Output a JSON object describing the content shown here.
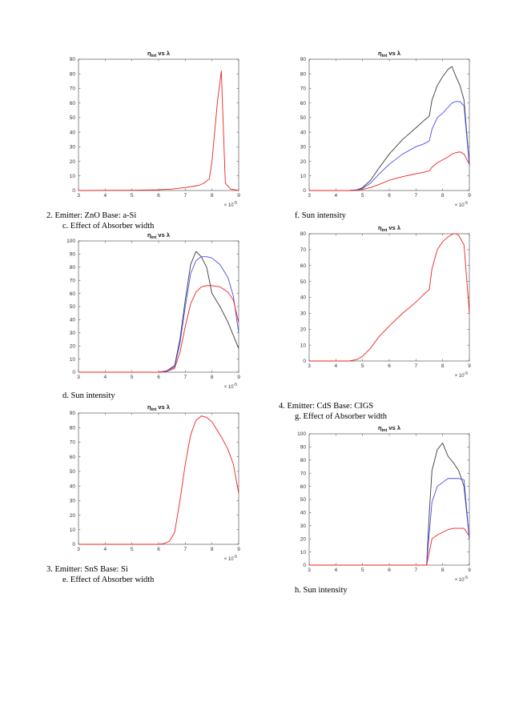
{
  "captions": {
    "cap2": "2.   Emitter:  ZnO Base: a-Si",
    "capc": "c.    Effect of Absorber width",
    "capd": "d.    Sun intensity",
    "cap3": "3.   Emitter:  SnS Base: Si",
    "cape": "e.    Effect of Absorber width",
    "capf": "f.    Sun intensity",
    "cap4": "4.   Emitter:  CdS   Base: CIGS",
    "capg": "g.    Effect of Absorber width",
    "caph": "h.    Sun intensity"
  },
  "colors": {
    "black": "#3a3a3a",
    "blue": "#4a4af0",
    "red": "#ee2222",
    "axis": "#444444"
  },
  "chart_data": [
    {
      "id": "plot1",
      "type": "line",
      "title": "ηint vs λ",
      "title_main": "η",
      "title_sub": "int",
      "title_rest": " vs λ",
      "xlabel": "",
      "ylabel": "",
      "x_multiplier": "× 10-5",
      "xlim": [
        3,
        9
      ],
      "ylim": [
        0,
        90
      ],
      "xticks": [
        3,
        4,
        5,
        6,
        7,
        8,
        9
      ],
      "yticks": [
        0,
        10,
        20,
        30,
        40,
        50,
        60,
        70,
        80,
        90
      ],
      "series": [
        {
          "color": "red",
          "x": [
            3,
            5,
            6,
            6.5,
            7,
            7.5,
            7.7,
            7.9,
            8.0,
            8.1,
            8.2,
            8.35,
            8.5,
            8.7,
            9.0
          ],
          "y": [
            0,
            0.2,
            0.5,
            1,
            2,
            3.5,
            5,
            8,
            20,
            40,
            60,
            82,
            5,
            1,
            0
          ]
        }
      ]
    },
    {
      "id": "plot2",
      "type": "line",
      "title": "ηint vs λ",
      "title_main": "η",
      "title_sub": "int",
      "title_rest": " vs λ",
      "xlabel": "",
      "ylabel": "",
      "x_multiplier": "× 10-5",
      "xlim": [
        3,
        9
      ],
      "ylim": [
        0,
        100
      ],
      "xticks": [
        3,
        4,
        5,
        6,
        7,
        8,
        9
      ],
      "yticks": [
        0,
        10,
        20,
        30,
        40,
        50,
        60,
        70,
        80,
        90,
        100
      ],
      "series": [
        {
          "color": "black",
          "x": [
            3,
            6.0,
            6.3,
            6.6,
            6.8,
            7.0,
            7.2,
            7.4,
            7.6,
            7.8,
            8.0,
            8.3,
            8.6,
            8.8,
            9.0
          ],
          "y": [
            0,
            0,
            1,
            5,
            25,
            55,
            82,
            92,
            88,
            80,
            60,
            50,
            38,
            28,
            18
          ]
        },
        {
          "color": "blue",
          "x": [
            3,
            6.0,
            6.3,
            6.6,
            6.8,
            7.0,
            7.2,
            7.4,
            7.6,
            7.8,
            8.0,
            8.3,
            8.6,
            8.8,
            9.0
          ],
          "y": [
            0,
            0,
            1,
            4,
            22,
            50,
            75,
            85,
            88,
            88,
            87,
            82,
            72,
            58,
            30
          ]
        },
        {
          "color": "red",
          "x": [
            3,
            6.0,
            6.3,
            6.6,
            6.8,
            7.0,
            7.2,
            7.4,
            7.6,
            7.8,
            8.0,
            8.3,
            8.6,
            8.8,
            9.0
          ],
          "y": [
            0,
            0,
            0.5,
            3,
            15,
            35,
            52,
            61,
            65,
            66,
            66,
            65,
            61,
            55,
            38
          ]
        }
      ]
    },
    {
      "id": "plot3",
      "type": "line",
      "title": "ηint vs λ",
      "title_main": "η",
      "title_sub": "int",
      "title_rest": " vs λ",
      "xlabel": "",
      "ylabel": "",
      "x_multiplier": "× 10-5",
      "xlim": [
        3,
        9
      ],
      "ylim": [
        0,
        90
      ],
      "xticks": [
        3,
        4,
        5,
        6,
        7,
        8,
        9
      ],
      "yticks": [
        0,
        10,
        20,
        30,
        40,
        50,
        60,
        70,
        80,
        90
      ],
      "series": [
        {
          "color": "red",
          "x": [
            3,
            6.0,
            6.2,
            6.4,
            6.6,
            6.8,
            7.0,
            7.2,
            7.4,
            7.6,
            7.8,
            8.0,
            8.2,
            8.4,
            8.6,
            8.8,
            9.0
          ],
          "y": [
            0,
            0,
            0.5,
            2,
            8,
            30,
            55,
            75,
            85,
            88,
            87,
            84,
            78,
            72,
            65,
            55,
            35
          ]
        }
      ]
    },
    {
      "id": "plot4",
      "type": "line",
      "title": "ηint vs λ",
      "title_main": "η",
      "title_sub": "int",
      "title_rest": " vs λ",
      "xlabel": "",
      "ylabel": "",
      "x_multiplier": "× 10-5",
      "xlim": [
        3,
        9
      ],
      "ylim": [
        0,
        90
      ],
      "xticks": [
        3,
        4,
        5,
        6,
        7,
        8,
        9
      ],
      "yticks": [
        0,
        10,
        20,
        30,
        40,
        50,
        60,
        70,
        80,
        90
      ],
      "series": [
        {
          "color": "black",
          "x": [
            3,
            4.5,
            4.8,
            5.0,
            5.3,
            5.6,
            6.0,
            6.5,
            7.0,
            7.3,
            7.5,
            7.6,
            7.8,
            8.0,
            8.2,
            8.35,
            8.5,
            8.65,
            8.8,
            9.0
          ],
          "y": [
            0,
            0,
            0.5,
            2,
            7,
            15,
            25,
            35,
            43,
            48,
            51,
            62,
            72,
            78,
            83,
            85,
            78,
            72,
            62,
            18
          ]
        },
        {
          "color": "blue",
          "x": [
            3,
            4.5,
            4.8,
            5.0,
            5.3,
            5.6,
            6.0,
            6.5,
            7.0,
            7.3,
            7.5,
            7.6,
            7.8,
            8.0,
            8.2,
            8.35,
            8.5,
            8.65,
            8.8,
            9.0
          ],
          "y": [
            0,
            0,
            0.4,
            1.5,
            5,
            11,
            18,
            25,
            30,
            32,
            34,
            42,
            50,
            53,
            57,
            60,
            61,
            61,
            58,
            17
          ]
        },
        {
          "color": "red",
          "x": [
            3,
            4.5,
            4.8,
            5.0,
            5.3,
            5.6,
            6.0,
            6.5,
            7.0,
            7.3,
            7.5,
            7.6,
            7.8,
            8.0,
            8.2,
            8.35,
            8.5,
            8.65,
            8.8,
            9.0
          ],
          "y": [
            0,
            0,
            0.2,
            0.8,
            2,
            4,
            7,
            9.5,
            11.5,
            12.5,
            13.5,
            16,
            19,
            21,
            23,
            25,
            26,
            26.5,
            25,
            18
          ]
        }
      ]
    },
    {
      "id": "plot5",
      "type": "line",
      "title": "ηint vs λ",
      "title_main": "η",
      "title_sub": "int",
      "title_rest": " vs λ",
      "xlabel": "",
      "ylabel": "",
      "x_multiplier": "× 10-5",
      "xlim": [
        3,
        9
      ],
      "ylim": [
        0,
        80
      ],
      "xticks": [
        3,
        4,
        5,
        6,
        7,
        8,
        9
      ],
      "yticks": [
        0,
        10,
        20,
        30,
        40,
        50,
        60,
        70,
        80
      ],
      "series": [
        {
          "color": "red",
          "x": [
            3,
            4.5,
            4.8,
            5.0,
            5.3,
            5.6,
            6.0,
            6.5,
            7.0,
            7.3,
            7.5,
            7.6,
            7.8,
            8.0,
            8.2,
            8.4,
            8.5,
            8.6,
            8.8,
            9.0
          ],
          "y": [
            0,
            0,
            1,
            3,
            8,
            15,
            22,
            30,
            37,
            42,
            45,
            58,
            70,
            75,
            78,
            80,
            80,
            79,
            73,
            30
          ]
        }
      ]
    },
    {
      "id": "plot6",
      "type": "line",
      "title": "ηint vs λ",
      "title_main": "η",
      "title_sub": "int",
      "title_rest": " vs λ",
      "xlabel": "",
      "ylabel": "",
      "x_multiplier": "× 10-5",
      "xlim": [
        3,
        9
      ],
      "ylim": [
        0,
        100
      ],
      "xticks": [
        3,
        4,
        5,
        6,
        7,
        8,
        9
      ],
      "yticks": [
        0,
        10,
        20,
        30,
        40,
        50,
        60,
        70,
        80,
        90,
        100
      ],
      "series": [
        {
          "color": "black",
          "x": [
            3,
            7.4,
            7.5,
            7.6,
            7.8,
            8.0,
            8.2,
            8.4,
            8.6,
            8.8,
            9.0
          ],
          "y": [
            0,
            0,
            40,
            72,
            88,
            93,
            83,
            78,
            72,
            60,
            20
          ]
        },
        {
          "color": "blue",
          "x": [
            3,
            7.4,
            7.5,
            7.6,
            7.8,
            8.0,
            8.2,
            8.4,
            8.6,
            8.8,
            9.0
          ],
          "y": [
            0,
            0,
            25,
            48,
            60,
            63,
            66,
            66,
            66,
            65,
            20
          ]
        },
        {
          "color": "red",
          "x": [
            3,
            7.4,
            7.5,
            7.6,
            7.8,
            8.0,
            8.2,
            8.4,
            8.6,
            8.8,
            9.0
          ],
          "y": [
            0,
            0,
            10,
            20,
            23,
            25,
            27,
            28,
            28,
            28,
            22
          ]
        }
      ]
    }
  ]
}
